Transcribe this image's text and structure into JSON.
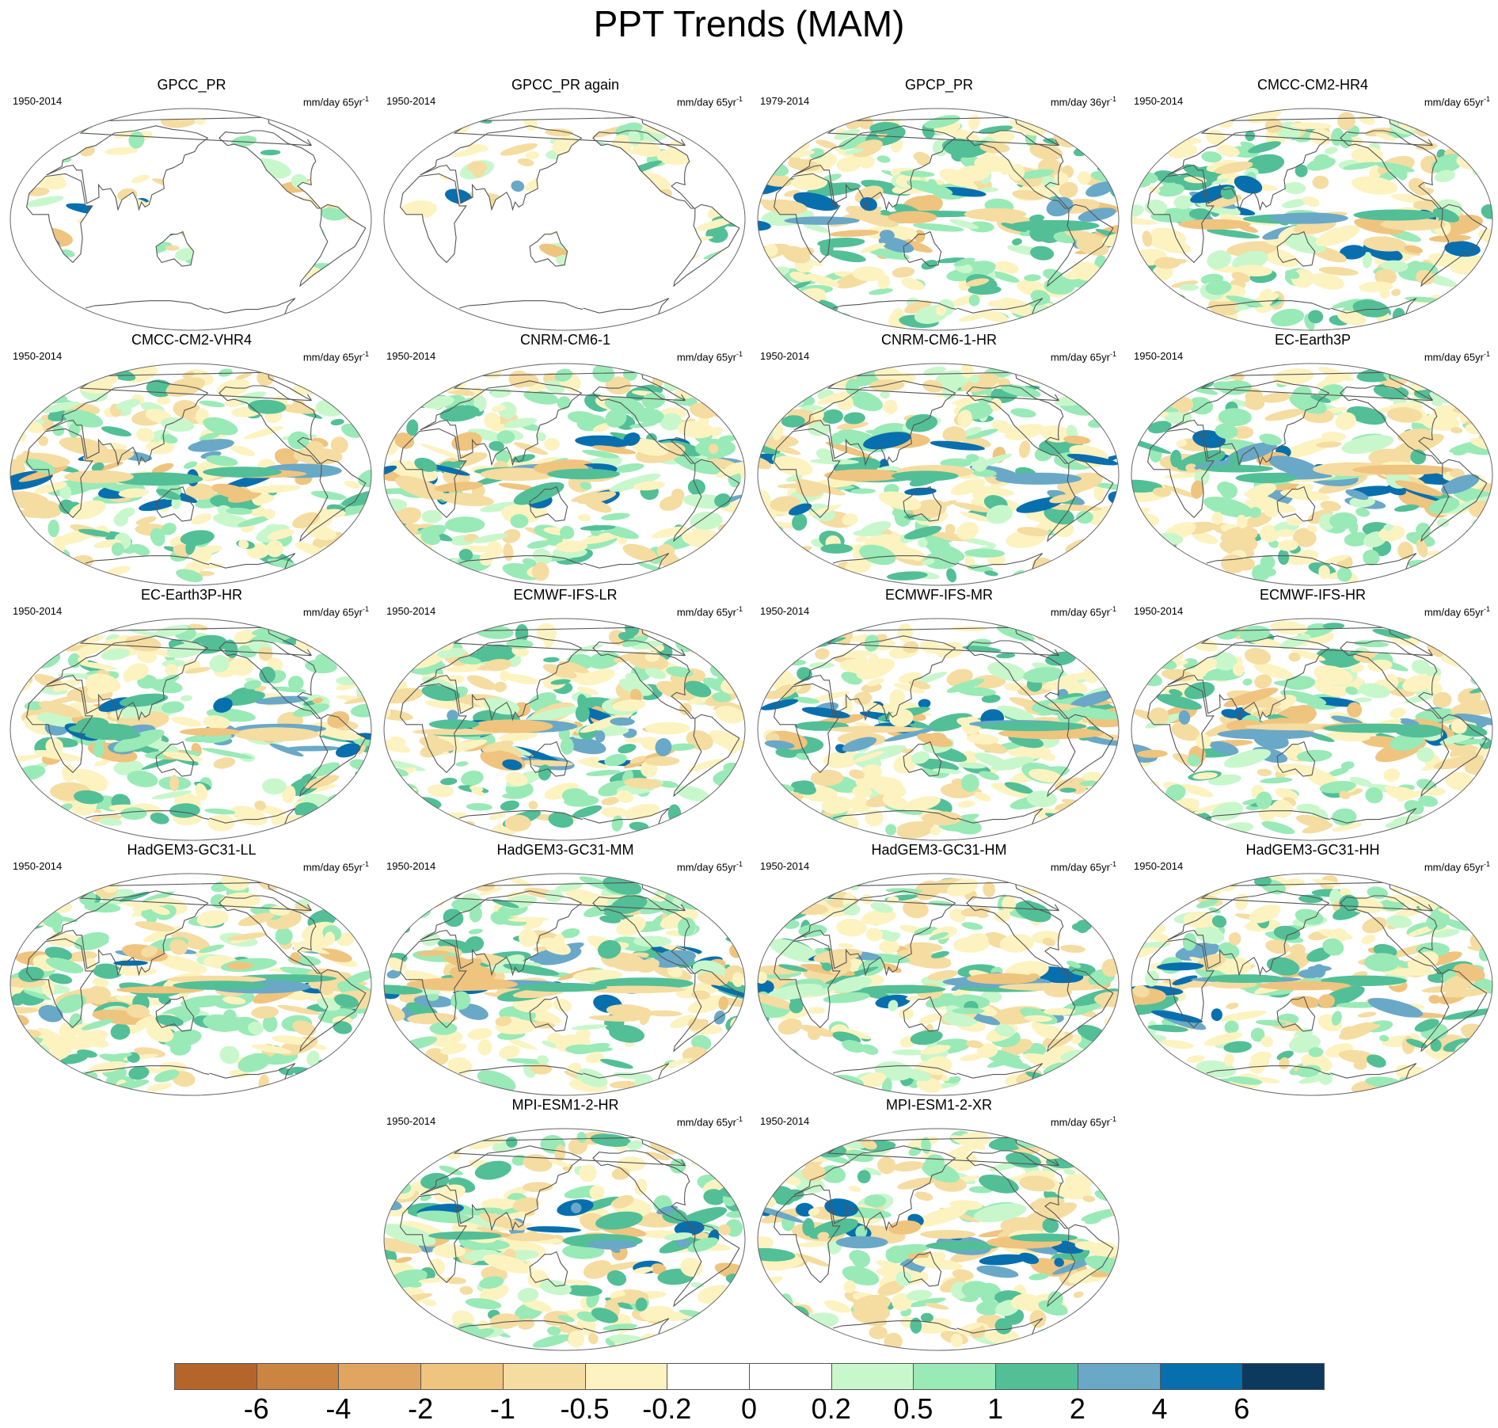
{
  "title": "PPT Trends (MAM)",
  "panels": [
    {
      "title": "GPCC_PR",
      "period": "1950-2014",
      "units_main": "mm/day 65yr",
      "units_exp": "-1",
      "coverage": "land",
      "seed": 11
    },
    {
      "title": "GPCC_PR again",
      "period": "1950-2014",
      "units_main": "mm/day 65yr",
      "units_exp": "-1",
      "coverage": "land",
      "seed": 12
    },
    {
      "title": "GPCP_PR",
      "period": "1979-2014",
      "units_main": "mm/day 36yr",
      "units_exp": "-1",
      "coverage": "global",
      "seed": 13
    },
    {
      "title": "CMCC-CM2-HR4",
      "period": "1950-2014",
      "units_main": "mm/day 65yr",
      "units_exp": "-1",
      "coverage": "global",
      "seed": 14
    },
    {
      "title": "CMCC-CM2-VHR4",
      "period": "1950-2014",
      "units_main": "mm/day 65yr",
      "units_exp": "-1",
      "coverage": "global",
      "seed": 15
    },
    {
      "title": "CNRM-CM6-1",
      "period": "1950-2014",
      "units_main": "mm/day 65yr",
      "units_exp": "-1",
      "coverage": "global",
      "seed": 16
    },
    {
      "title": "CNRM-CM6-1-HR",
      "period": "1950-2014",
      "units_main": "mm/day 65yr",
      "units_exp": "-1",
      "coverage": "global",
      "seed": 17
    },
    {
      "title": "EC-Earth3P",
      "period": "1950-2014",
      "units_main": "mm/day 65yr",
      "units_exp": "-1",
      "coverage": "global",
      "seed": 18
    },
    {
      "title": "EC-Earth3P-HR",
      "period": "1950-2014",
      "units_main": "mm/day 65yr",
      "units_exp": "-1",
      "coverage": "global",
      "seed": 19
    },
    {
      "title": "ECMWF-IFS-LR",
      "period": "1950-2014",
      "units_main": "mm/day 65yr",
      "units_exp": "-1",
      "coverage": "global",
      "seed": 20
    },
    {
      "title": "ECMWF-IFS-MR",
      "period": "1950-2014",
      "units_main": "mm/day 65yr",
      "units_exp": "-1",
      "coverage": "global",
      "seed": 21
    },
    {
      "title": "ECMWF-IFS-HR",
      "period": "1950-2014",
      "units_main": "mm/day 65yr",
      "units_exp": "-1",
      "coverage": "global",
      "seed": 22
    },
    {
      "title": "HadGEM3-GC31-LL",
      "period": "1950-2014",
      "units_main": "mm/day 65yr",
      "units_exp": "-1",
      "coverage": "global",
      "seed": 23
    },
    {
      "title": "HadGEM3-GC31-MM",
      "period": "1950-2014",
      "units_main": "mm/day 65yr",
      "units_exp": "-1",
      "coverage": "global",
      "seed": 24
    },
    {
      "title": "HadGEM3-GC31-HM",
      "period": "1950-2014",
      "units_main": "mm/day 65yr",
      "units_exp": "-1",
      "coverage": "global",
      "seed": 25
    },
    {
      "title": "HadGEM3-GC31-HH",
      "period": "1950-2014",
      "units_main": "mm/day 65yr",
      "units_exp": "-1",
      "coverage": "global",
      "seed": 26
    },
    {
      "title": "MPI-ESM1-2-HR",
      "period": "1950-2014",
      "units_main": "mm/day 65yr",
      "units_exp": "-1",
      "coverage": "global",
      "seed": 27
    },
    {
      "title": "MPI-ESM1-2-XR",
      "period": "1950-2014",
      "units_main": "mm/day 65yr",
      "units_exp": "-1",
      "coverage": "global",
      "seed": 28
    }
  ],
  "colorbar": {
    "colors": [
      "#b5652a",
      "#cc8540",
      "#dfa561",
      "#efc47e",
      "#f5dca0",
      "#fdf3c1",
      "#ffffff",
      "#ffffff",
      "#c9f7cc",
      "#99eab6",
      "#52bf97",
      "#6aa8c7",
      "#086fae",
      "#0b3a5e"
    ],
    "labels": [
      "-6",
      "-4",
      "-2",
      "-1",
      "-0.5",
      "-0.2",
      "0",
      "0.2",
      "0.5",
      "1",
      "2",
      "4",
      "6"
    ]
  }
}
